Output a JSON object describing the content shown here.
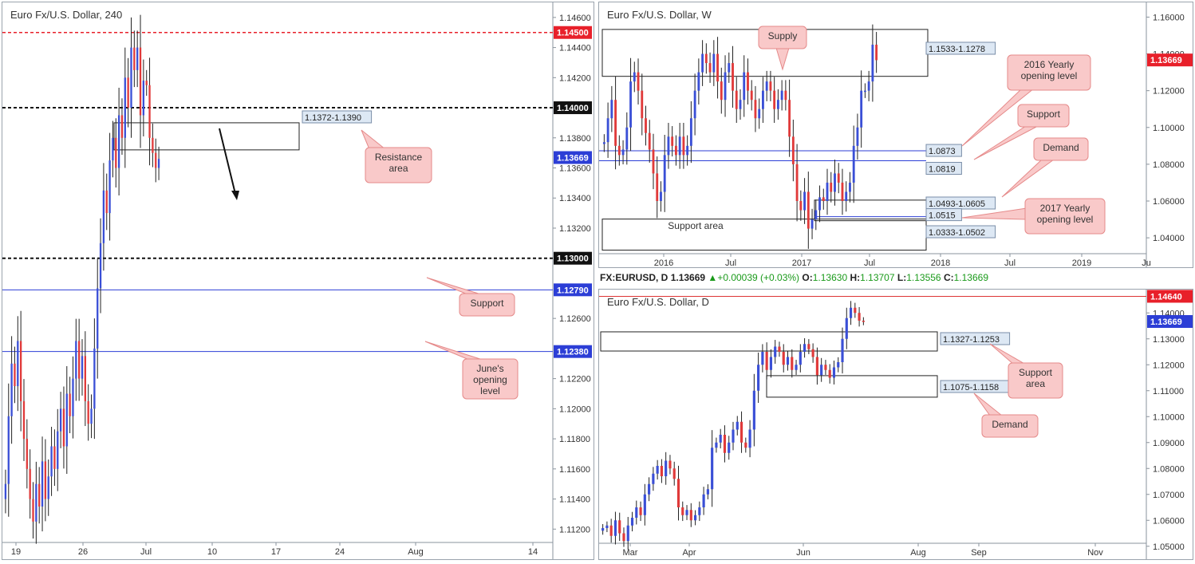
{
  "colors": {
    "up": "#3a4fd6",
    "down": "#e03a3a",
    "wick": "#222222",
    "price_tag": "#2c3ed6",
    "red_tag": "#e8202a",
    "callout_bg": "#f9c9c9",
    "callout_border": "#e58a8a",
    "zone_label_bg": "#dde8f4"
  },
  "panels": {
    "h4": {
      "title": "Euro Fx/U.S. Dollar, 240"
    },
    "weekly": {
      "title": "Euro Fx/U.S. Dollar, W"
    },
    "daily": {
      "title": "Euro Fx/U.S. Dollar, D"
    }
  },
  "daily_header": {
    "symbol": "FX:EURUSD, D",
    "last": "1.13669",
    "change": "+0.00039 (+0.03%)",
    "o_label": "O:",
    "o": "1.13630",
    "h_label": "H:",
    "h": "1.13707",
    "l_label": "L:",
    "l": "1.13556",
    "c_label": "C:",
    "c": "1.13669"
  },
  "chart_data": [
    {
      "type": "candlestick",
      "title": "Euro Fx/U.S. Dollar, 240",
      "x_ticks": [
        "19",
        "26",
        "Jul",
        "10",
        "17",
        "24",
        "Aug",
        "14"
      ],
      "y_ticks": [
        "1.14600",
        "1.14400",
        "1.14200",
        "1.13800",
        "1.13600",
        "1.13400",
        "1.13200",
        "1.12600",
        "1.12200",
        "1.12000",
        "1.11800",
        "1.11600",
        "1.11400",
        "1.11200"
      ],
      "ylim": [
        1.11,
        1.147
      ],
      "price_tags": [
        {
          "label": "1.14500",
          "value": 1.145,
          "style": "red"
        },
        {
          "label": "1.14000",
          "value": 1.14,
          "style": "black"
        },
        {
          "label": "1.13669",
          "value": 1.13669,
          "style": "blue"
        },
        {
          "label": "1.13000",
          "value": 1.13,
          "style": "black"
        },
        {
          "label": "1.12790",
          "value": 1.1279,
          "style": "blue"
        },
        {
          "label": "1.12380",
          "value": 1.1238,
          "style": "blue"
        }
      ],
      "levels": [
        {
          "value": 1.145,
          "style": "red-dashed"
        },
        {
          "value": 1.14,
          "style": "black-dashed"
        },
        {
          "value": 1.13,
          "style": "black-dashed"
        },
        {
          "value": 1.1279,
          "style": "blue"
        },
        {
          "value": 1.1238,
          "style": "blue"
        }
      ],
      "zones": [
        {
          "label": "1.1372-1.1390",
          "low": 1.1372,
          "high": 1.139
        }
      ],
      "callouts": [
        "Resistance area",
        "Support",
        "June's opening level"
      ],
      "closes": [
        1.115,
        1.1195,
        1.123,
        1.1215,
        1.1245,
        1.1205,
        1.118,
        1.116,
        1.114,
        1.1125,
        1.115,
        1.1135,
        1.1165,
        1.114,
        1.1155,
        1.1175,
        1.116,
        1.1185,
        1.12,
        1.1175,
        1.121,
        1.1195,
        1.122,
        1.1245,
        1.122,
        1.1235,
        1.1205,
        1.119,
        1.12,
        1.124,
        1.128,
        1.131,
        1.1345,
        1.133,
        1.1365,
        1.138,
        1.136,
        1.1395,
        1.138,
        1.142,
        1.14,
        1.144,
        1.1425,
        1.144,
        1.1395,
        1.1418,
        1.1415,
        1.138,
        1.137,
        1.136,
        1.1366
      ]
    },
    {
      "type": "candlestick",
      "title": "Euro Fx/U.S. Dollar, W",
      "x_ticks": [
        "2016",
        "Jul",
        "2017",
        "Jul",
        "2018",
        "Jul",
        "2019",
        "Ju"
      ],
      "y_ticks": [
        "1.16000",
        "1.14000",
        "1.12000",
        "1.10000",
        "1.08000",
        "1.06000",
        "1.04000"
      ],
      "ylim": [
        1.024,
        1.168
      ],
      "price_tags": [
        {
          "label": "1.13669",
          "value": 1.13669,
          "style": "red"
        }
      ],
      "levels": [
        {
          "value": 1.0873,
          "label": "1.0873"
        },
        {
          "value": 1.0819,
          "label": "1.0819"
        },
        {
          "value": 1.0515,
          "label": "1.0515"
        }
      ],
      "zones": [
        {
          "label": "1.1533-1.1278",
          "low": 1.1278,
          "high": 1.1533
        },
        {
          "label": "1.0493-1.0605",
          "low": 1.0493,
          "high": 1.0605
        },
        {
          "label": "1.0333-1.0502",
          "low": 1.0333,
          "high": 1.0502
        }
      ],
      "zone_text": "Support area",
      "callouts": [
        "Supply",
        "2016 Yearly opening level",
        "Support",
        "Demand",
        "2017 Yearly opening level"
      ],
      "closes": [
        1.092,
        1.105,
        1.115,
        1.09,
        1.085,
        1.088,
        1.1,
        1.125,
        1.13,
        1.12,
        1.105,
        1.097,
        1.088,
        1.075,
        1.06,
        1.065,
        1.085,
        1.095,
        1.09,
        1.085,
        1.095,
        1.085,
        1.09,
        1.105,
        1.12,
        1.13,
        1.14,
        1.135,
        1.13,
        1.14,
        1.125,
        1.115,
        1.13,
        1.135,
        1.12,
        1.11,
        1.115,
        1.13,
        1.12,
        1.115,
        1.105,
        1.11,
        1.12,
        1.125,
        1.12,
        1.11,
        1.115,
        1.12,
        1.115,
        1.095,
        1.08,
        1.06,
        1.055,
        1.065,
        1.045,
        1.05,
        1.055,
        1.062,
        1.06,
        1.07,
        1.065,
        1.075,
        1.07,
        1.06,
        1.065,
        1.07,
        1.09,
        1.1,
        1.12,
        1.12,
        1.125,
        1.145,
        1.1366
      ]
    },
    {
      "type": "candlestick",
      "title": "Euro Fx/U.S. Dollar, D",
      "x_ticks": [
        "Mar",
        "Apr",
        "Jun",
        "Aug",
        "Sep",
        "Nov"
      ],
      "y_ticks": [
        "1.14000",
        "1.13000",
        "1.12000",
        "1.11000",
        "1.10000",
        "1.09000",
        "1.08000",
        "1.07000",
        "1.06000",
        "1.05000"
      ],
      "ylim": [
        1.045,
        1.149
      ],
      "price_tags": [
        {
          "label": "1.14640",
          "value": 1.1464,
          "style": "red"
        },
        {
          "label": "1.13669",
          "value": 1.13669,
          "style": "blue"
        }
      ],
      "levels": [
        {
          "value": 1.1464,
          "style": "red"
        }
      ],
      "zones": [
        {
          "label": "1.1327-1.1253",
          "low": 1.1253,
          "high": 1.1327
        },
        {
          "label": "1.1075-1.1158",
          "low": 1.1075,
          "high": 1.1158
        }
      ],
      "callouts": [
        "Support area",
        "Demand"
      ],
      "closes": [
        1.057,
        1.058,
        1.054,
        1.06,
        1.055,
        1.052,
        1.058,
        1.061,
        1.065,
        1.062,
        1.07,
        1.074,
        1.078,
        1.081,
        1.077,
        1.083,
        1.08,
        1.076,
        1.065,
        1.062,
        1.064,
        1.06,
        1.062,
        1.065,
        1.07,
        1.072,
        1.088,
        1.09,
        1.093,
        1.086,
        1.09,
        1.095,
        1.098,
        1.09,
        1.088,
        1.095,
        1.11,
        1.12,
        1.125,
        1.118,
        1.123,
        1.127,
        1.125,
        1.12,
        1.123,
        1.118,
        1.12,
        1.125,
        1.128,
        1.126,
        1.123,
        1.116,
        1.12,
        1.118,
        1.115,
        1.119,
        1.121,
        1.13,
        1.138,
        1.142,
        1.14,
        1.137,
        1.1366
      ]
    }
  ]
}
